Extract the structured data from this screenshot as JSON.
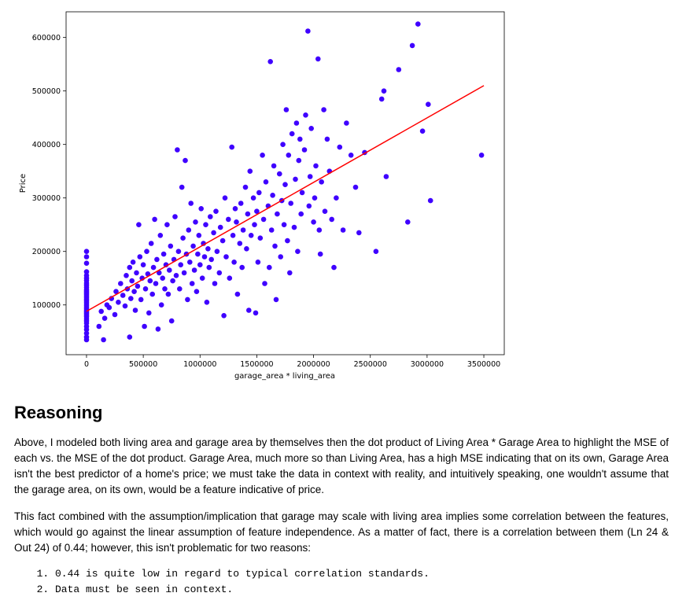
{
  "chart_data": {
    "type": "scatter",
    "title": "",
    "xlabel": "garage_area * living_area",
    "ylabel": "Price",
    "xlim": [
      -180000,
      3680000
    ],
    "ylim": [
      7000,
      648000
    ],
    "x_ticks": [
      0,
      500000,
      1000000,
      1500000,
      2000000,
      2500000,
      3000000,
      3500000
    ],
    "y_ticks": [
      100000,
      200000,
      300000,
      400000,
      500000,
      600000
    ],
    "grid": false,
    "point_color": "#3f00ff",
    "line_color": "#ff0000",
    "regression_line": {
      "x": [
        0,
        3500000
      ],
      "y": [
        88000,
        510000
      ]
    },
    "points": [
      [
        0,
        200000
      ],
      [
        0,
        190000
      ],
      [
        0,
        178000
      ],
      [
        0,
        162000
      ],
      [
        0,
        155000
      ],
      [
        0,
        150000
      ],
      [
        0,
        146000
      ],
      [
        0,
        141000
      ],
      [
        0,
        137000
      ],
      [
        0,
        133000
      ],
      [
        0,
        129000
      ],
      [
        0,
        126000
      ],
      [
        0,
        123000
      ],
      [
        0,
        120000
      ],
      [
        0,
        117000
      ],
      [
        0,
        114000
      ],
      [
        0,
        111000
      ],
      [
        0,
        108000
      ],
      [
        0,
        105000
      ],
      [
        0,
        102000
      ],
      [
        0,
        99000
      ],
      [
        0,
        96000
      ],
      [
        0,
        93000
      ],
      [
        0,
        90000
      ],
      [
        0,
        87000
      ],
      [
        0,
        84000
      ],
      [
        0,
        81000
      ],
      [
        0,
        78000
      ],
      [
        0,
        74000
      ],
      [
        0,
        70000
      ],
      [
        0,
        66000
      ],
      [
        0,
        60000
      ],
      [
        0,
        54000
      ],
      [
        0,
        47000
      ],
      [
        0,
        40000
      ],
      [
        0,
        35000
      ],
      [
        150000,
        35000
      ],
      [
        110000,
        60000
      ],
      [
        130000,
        88000
      ],
      [
        160000,
        75000
      ],
      [
        180000,
        100000
      ],
      [
        200000,
        95000
      ],
      [
        220000,
        112000
      ],
      [
        250000,
        82000
      ],
      [
        260000,
        125000
      ],
      [
        280000,
        105000
      ],
      [
        300000,
        140000
      ],
      [
        320000,
        118000
      ],
      [
        340000,
        98000
      ],
      [
        350000,
        155000
      ],
      [
        360000,
        130000
      ],
      [
        380000,
        170000
      ],
      [
        380000,
        40000
      ],
      [
        390000,
        112000
      ],
      [
        400000,
        145000
      ],
      [
        410000,
        180000
      ],
      [
        420000,
        125000
      ],
      [
        430000,
        90000
      ],
      [
        440000,
        160000
      ],
      [
        450000,
        135000
      ],
      [
        460000,
        250000
      ],
      [
        470000,
        190000
      ],
      [
        480000,
        110000
      ],
      [
        490000,
        150000
      ],
      [
        500000,
        175000
      ],
      [
        510000,
        60000
      ],
      [
        520000,
        130000
      ],
      [
        530000,
        200000
      ],
      [
        540000,
        158000
      ],
      [
        550000,
        85000
      ],
      [
        560000,
        145000
      ],
      [
        570000,
        215000
      ],
      [
        580000,
        120000
      ],
      [
        590000,
        170000
      ],
      [
        600000,
        260000
      ],
      [
        610000,
        140000
      ],
      [
        620000,
        185000
      ],
      [
        630000,
        55000
      ],
      [
        640000,
        160000
      ],
      [
        650000,
        230000
      ],
      [
        660000,
        100000
      ],
      [
        670000,
        150000
      ],
      [
        680000,
        195000
      ],
      [
        690000,
        130000
      ],
      [
        700000,
        175000
      ],
      [
        710000,
        250000
      ],
      [
        720000,
        120000
      ],
      [
        730000,
        165000
      ],
      [
        740000,
        210000
      ],
      [
        750000,
        70000
      ],
      [
        760000,
        145000
      ],
      [
        770000,
        185000
      ],
      [
        780000,
        265000
      ],
      [
        790000,
        155000
      ],
      [
        800000,
        390000
      ],
      [
        810000,
        200000
      ],
      [
        820000,
        130000
      ],
      [
        830000,
        175000
      ],
      [
        840000,
        320000
      ],
      [
        850000,
        225000
      ],
      [
        860000,
        160000
      ],
      [
        870000,
        370000
      ],
      [
        880000,
        195000
      ],
      [
        890000,
        110000
      ],
      [
        900000,
        240000
      ],
      [
        910000,
        180000
      ],
      [
        920000,
        290000
      ],
      [
        930000,
        140000
      ],
      [
        940000,
        210000
      ],
      [
        950000,
        165000
      ],
      [
        960000,
        255000
      ],
      [
        970000,
        125000
      ],
      [
        980000,
        195000
      ],
      [
        990000,
        230000
      ],
      [
        1000000,
        175000
      ],
      [
        1010000,
        280000
      ],
      [
        1020000,
        150000
      ],
      [
        1030000,
        215000
      ],
      [
        1040000,
        190000
      ],
      [
        1050000,
        250000
      ],
      [
        1060000,
        105000
      ],
      [
        1070000,
        205000
      ],
      [
        1080000,
        170000
      ],
      [
        1090000,
        265000
      ],
      [
        1100000,
        185000
      ],
      [
        1120000,
        235000
      ],
      [
        1130000,
        140000
      ],
      [
        1140000,
        275000
      ],
      [
        1150000,
        200000
      ],
      [
        1170000,
        160000
      ],
      [
        1180000,
        245000
      ],
      [
        1200000,
        220000
      ],
      [
        1210000,
        80000
      ],
      [
        1220000,
        300000
      ],
      [
        1230000,
        190000
      ],
      [
        1250000,
        260000
      ],
      [
        1260000,
        150000
      ],
      [
        1280000,
        395000
      ],
      [
        1290000,
        230000
      ],
      [
        1300000,
        180000
      ],
      [
        1310000,
        280000
      ],
      [
        1320000,
        255000
      ],
      [
        1330000,
        120000
      ],
      [
        1350000,
        215000
      ],
      [
        1360000,
        290000
      ],
      [
        1370000,
        170000
      ],
      [
        1380000,
        240000
      ],
      [
        1400000,
        320000
      ],
      [
        1410000,
        205000
      ],
      [
        1420000,
        270000
      ],
      [
        1430000,
        90000
      ],
      [
        1440000,
        350000
      ],
      [
        1450000,
        230000
      ],
      [
        1470000,
        300000
      ],
      [
        1480000,
        250000
      ],
      [
        1490000,
        85000
      ],
      [
        1500000,
        275000
      ],
      [
        1510000,
        180000
      ],
      [
        1520000,
        310000
      ],
      [
        1530000,
        225000
      ],
      [
        1550000,
        380000
      ],
      [
        1560000,
        260000
      ],
      [
        1570000,
        140000
      ],
      [
        1580000,
        330000
      ],
      [
        1600000,
        285000
      ],
      [
        1610000,
        170000
      ],
      [
        1620000,
        555000
      ],
      [
        1630000,
        240000
      ],
      [
        1640000,
        305000
      ],
      [
        1650000,
        360000
      ],
      [
        1660000,
        210000
      ],
      [
        1670000,
        110000
      ],
      [
        1680000,
        270000
      ],
      [
        1700000,
        345000
      ],
      [
        1710000,
        190000
      ],
      [
        1720000,
        295000
      ],
      [
        1730000,
        400000
      ],
      [
        1740000,
        250000
      ],
      [
        1750000,
        325000
      ],
      [
        1760000,
        465000
      ],
      [
        1770000,
        220000
      ],
      [
        1780000,
        380000
      ],
      [
        1790000,
        160000
      ],
      [
        1800000,
        290000
      ],
      [
        1810000,
        420000
      ],
      [
        1830000,
        245000
      ],
      [
        1840000,
        335000
      ],
      [
        1850000,
        440000
      ],
      [
        1860000,
        200000
      ],
      [
        1870000,
        370000
      ],
      [
        1880000,
        410000
      ],
      [
        1890000,
        270000
      ],
      [
        1900000,
        310000
      ],
      [
        1920000,
        390000
      ],
      [
        1930000,
        455000
      ],
      [
        1950000,
        612000
      ],
      [
        1960000,
        285000
      ],
      [
        1970000,
        340000
      ],
      [
        1980000,
        430000
      ],
      [
        2000000,
        255000
      ],
      [
        2010000,
        300000
      ],
      [
        2020000,
        360000
      ],
      [
        2040000,
        560000
      ],
      [
        2050000,
        240000
      ],
      [
        2060000,
        195000
      ],
      [
        2070000,
        330000
      ],
      [
        2090000,
        465000
      ],
      [
        2100000,
        275000
      ],
      [
        2120000,
        410000
      ],
      [
        2140000,
        350000
      ],
      [
        2160000,
        260000
      ],
      [
        2180000,
        170000
      ],
      [
        2200000,
        300000
      ],
      [
        2230000,
        395000
      ],
      [
        2260000,
        240000
      ],
      [
        2290000,
        440000
      ],
      [
        2330000,
        380000
      ],
      [
        2370000,
        320000
      ],
      [
        2400000,
        235000
      ],
      [
        2450000,
        385000
      ],
      [
        2550000,
        200000
      ],
      [
        2600000,
        485000
      ],
      [
        2620000,
        500000
      ],
      [
        2640000,
        340000
      ],
      [
        2750000,
        540000
      ],
      [
        2830000,
        255000
      ],
      [
        2870000,
        585000
      ],
      [
        2920000,
        625000
      ],
      [
        2960000,
        425000
      ],
      [
        3010000,
        475000
      ],
      [
        3030000,
        295000
      ],
      [
        3480000,
        380000
      ]
    ]
  },
  "reasoning": {
    "heading": "Reasoning",
    "paragraph1": "Above, I modeled both living area and garage area by themselves then the dot product of Living Area * Garage Area to highlight the MSE of each vs. the MSE of the dot product. Garage Area, much more so than Living Area, has a high MSE indicating that on its own, Garage Area isn't the best predictor of a home's price; we must take the data in context with reality, and intuitively speaking, one wouldn't assume that the garage area, on its own, would be a feature indicative of price.",
    "paragraph2": "This fact combined with the assumption/implication that garage may scale with living area implies some correlation between the features, which would go against the linear assumption of feature independence. As a matter of fact, there is a correlation between them (Ln 24 & Out 24) of 0.44; however, this isn't problematic for two reasons:",
    "list": [
      "0.44 is quite low in regard to typical correlation standards.",
      "Data must be seen in context."
    ]
  }
}
